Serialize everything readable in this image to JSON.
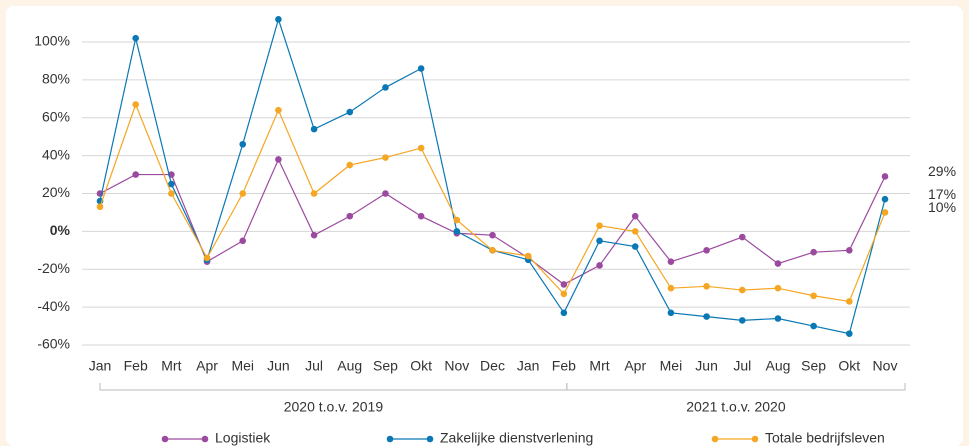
{
  "chart_data": {
    "type": "line",
    "categories": [
      "Jan",
      "Feb",
      "Mrt",
      "Apr",
      "Mei",
      "Jun",
      "Jul",
      "Aug",
      "Sep",
      "Okt",
      "Nov",
      "Dec",
      "Jan",
      "Feb",
      "Mrt",
      "Apr",
      "Mei",
      "Jun",
      "Jul",
      "Aug",
      "Sep",
      "Okt",
      "Nov"
    ],
    "groups": [
      "2020 t.o.v. 2019",
      "2021 t.o.v. 2020"
    ],
    "ylim": [
      -60,
      100
    ],
    "yticks": [
      {
        "value": -60,
        "label": "-60%"
      },
      {
        "value": -40,
        "label": "-40%"
      },
      {
        "value": -20,
        "label": "-20%"
      },
      {
        "value": 0,
        "label": "0%"
      },
      {
        "value": 20,
        "label": "20%"
      },
      {
        "value": 40,
        "label": "40%"
      },
      {
        "value": 60,
        "label": "60%"
      },
      {
        "value": 80,
        "label": "80%"
      },
      {
        "value": 100,
        "label": "100%"
      }
    ],
    "grid": true,
    "legend": "bottom",
    "series": [
      {
        "name": "Logistiek",
        "color": "#9c4a9f",
        "values": [
          20,
          30,
          30,
          -16,
          -5,
          38,
          -2,
          8,
          20,
          8,
          -1,
          -2,
          -14,
          -28,
          -18,
          8,
          -16,
          -10,
          -3,
          -17,
          -11,
          -10,
          29
        ],
        "value_labels": [
          null,
          null,
          null,
          null,
          null,
          null,
          null,
          null,
          null,
          null,
          null,
          null,
          null,
          null,
          null,
          null,
          null,
          null,
          null,
          null,
          null,
          null,
          "29%"
        ]
      },
      {
        "name": "Zakelijke dienstverlening",
        "color": "#0a78b4",
        "values": [
          16,
          102,
          25,
          -15,
          46,
          112,
          54,
          63,
          76,
          86,
          0,
          -10,
          -15,
          -43,
          -5,
          -8,
          -43,
          -45,
          -47,
          -46,
          -50,
          -54,
          17
        ],
        "value_labels": [
          null,
          null,
          null,
          null,
          null,
          null,
          null,
          null,
          null,
          null,
          null,
          null,
          null,
          null,
          null,
          null,
          null,
          null,
          null,
          null,
          null,
          null,
          "17%"
        ]
      },
      {
        "name": "Totale bedrijfsleven",
        "color": "#f5a623",
        "values": [
          13,
          67,
          20,
          -14,
          20,
          64,
          20,
          35,
          39,
          44,
          6,
          -10,
          -13,
          -33,
          3,
          0,
          -30,
          -29,
          -31,
          -30,
          -34,
          -37,
          10
        ],
        "value_labels": [
          null,
          null,
          null,
          null,
          null,
          null,
          null,
          null,
          null,
          null,
          null,
          null,
          null,
          null,
          null,
          null,
          null,
          null,
          null,
          null,
          null,
          null,
          "10%"
        ]
      }
    ]
  }
}
